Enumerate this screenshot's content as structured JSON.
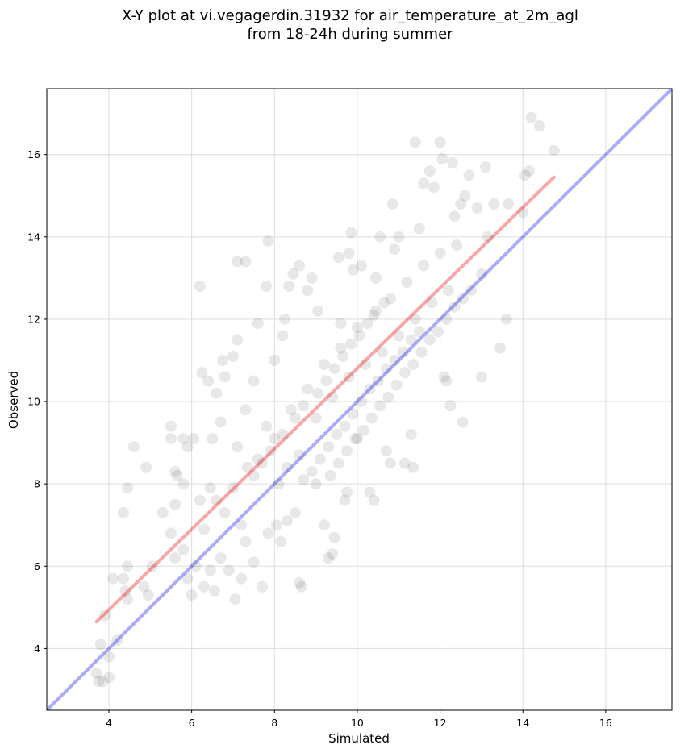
{
  "chart_data": {
    "type": "scatter",
    "title_line1": "X-Y plot at vi.vegagerdin.31932 for air_temperature_at_2m_agl",
    "title_line2": "from 18-24h during summer",
    "xlabel": "Simulated",
    "ylabel": "Observed",
    "xlim": [
      2.5,
      17.6
    ],
    "ylim": [
      2.5,
      17.6
    ],
    "xticks": [
      "4",
      "6",
      "8",
      "10",
      "12",
      "14",
      "16"
    ],
    "yticks": [
      "4",
      "6",
      "8",
      "10",
      "12",
      "14",
      "16"
    ],
    "grid": true,
    "point_color": "#000000",
    "point_alpha": 0.09,
    "identity_line": {
      "from": [
        2.5,
        2.5
      ],
      "to": [
        17.6,
        17.6
      ],
      "color": "#0000ee",
      "alpha": 0.33
    },
    "fit_line": {
      "from": [
        3.7,
        4.65
      ],
      "to": [
        14.75,
        15.45
      ],
      "color": "#ee0000",
      "alpha": 0.35
    },
    "points": [
      [
        3.7,
        3.4
      ],
      [
        3.75,
        3.2
      ],
      [
        3.85,
        3.2
      ],
      [
        3.8,
        4.1
      ],
      [
        3.9,
        4.8
      ],
      [
        4.0,
        3.3
      ],
      [
        4.0,
        3.8
      ],
      [
        4.2,
        4.2
      ],
      [
        4.35,
        7.3
      ],
      [
        4.45,
        7.9
      ],
      [
        4.1,
        5.7
      ],
      [
        4.35,
        5.7
      ],
      [
        4.45,
        6.0
      ],
      [
        4.4,
        5.4
      ],
      [
        4.45,
        5.2
      ],
      [
        4.6,
        8.9
      ],
      [
        4.85,
        5.5
      ],
      [
        4.9,
        8.4
      ],
      [
        4.95,
        5.3
      ],
      [
        5.05,
        6.0
      ],
      [
        5.5,
        9.4
      ],
      [
        5.5,
        9.1
      ],
      [
        5.6,
        8.3
      ],
      [
        5.65,
        8.2
      ],
      [
        5.8,
        9.1
      ],
      [
        5.9,
        8.9
      ],
      [
        6.05,
        9.1
      ],
      [
        6.2,
        12.8
      ],
      [
        6.25,
        10.7
      ],
      [
        6.4,
        10.5
      ],
      [
        6.45,
        7.9
      ],
      [
        6.5,
        9.1
      ],
      [
        6.6,
        10.2
      ],
      [
        6.7,
        9.5
      ],
      [
        6.75,
        11.0
      ],
      [
        6.8,
        10.6
      ],
      [
        7.0,
        11.1
      ],
      [
        7.1,
        11.5
      ],
      [
        7.1,
        13.4
      ],
      [
        7.3,
        13.4
      ],
      [
        7.3,
        9.8
      ],
      [
        7.35,
        8.4
      ],
      [
        7.5,
        10.5
      ],
      [
        7.6,
        11.9
      ],
      [
        7.8,
        12.8
      ],
      [
        7.85,
        13.9
      ],
      [
        8.0,
        11.0
      ],
      [
        8.15,
        6.6
      ],
      [
        8.2,
        11.6
      ],
      [
        8.25,
        12.0
      ],
      [
        8.35,
        12.8
      ],
      [
        8.45,
        13.1
      ],
      [
        8.6,
        13.3
      ],
      [
        8.6,
        5.6
      ],
      [
        8.65,
        5.5
      ],
      [
        8.8,
        12.7
      ],
      [
        8.9,
        13.0
      ],
      [
        9.05,
        12.2
      ],
      [
        9.2,
        7.0
      ],
      [
        9.3,
        6.2
      ],
      [
        9.4,
        6.3
      ],
      [
        9.45,
        6.7
      ],
      [
        9.55,
        13.5
      ],
      [
        9.6,
        11.9
      ],
      [
        9.7,
        7.6
      ],
      [
        9.75,
        7.8
      ],
      [
        9.8,
        13.6
      ],
      [
        9.85,
        14.1
      ],
      [
        9.9,
        13.2
      ],
      [
        10.0,
        9.1
      ],
      [
        10.1,
        13.3
      ],
      [
        10.3,
        7.8
      ],
      [
        10.4,
        7.6
      ],
      [
        10.45,
        13.0
      ],
      [
        10.55,
        14.0
      ],
      [
        10.7,
        8.8
      ],
      [
        10.8,
        8.5
      ],
      [
        10.85,
        14.8
      ],
      [
        10.9,
        13.7
      ],
      [
        11.0,
        14.0
      ],
      [
        11.15,
        8.5
      ],
      [
        11.3,
        9.2
      ],
      [
        11.35,
        8.4
      ],
      [
        11.4,
        16.3
      ],
      [
        11.5,
        14.2
      ],
      [
        11.6,
        15.3
      ],
      [
        11.75,
        15.6
      ],
      [
        11.85,
        15.2
      ],
      [
        12.0,
        16.3
      ],
      [
        12.05,
        15.9
      ],
      [
        12.1,
        10.6
      ],
      [
        12.15,
        10.5
      ],
      [
        12.25,
        9.9
      ],
      [
        12.3,
        15.8
      ],
      [
        12.35,
        14.5
      ],
      [
        12.5,
        14.8
      ],
      [
        12.55,
        9.5
      ],
      [
        12.6,
        15.0
      ],
      [
        12.7,
        15.5
      ],
      [
        12.75,
        12.7
      ],
      [
        12.9,
        14.7
      ],
      [
        13.0,
        13.1
      ],
      [
        13.0,
        10.6
      ],
      [
        13.1,
        15.7
      ],
      [
        13.15,
        14.0
      ],
      [
        13.3,
        14.8
      ],
      [
        13.45,
        11.3
      ],
      [
        13.6,
        12.0
      ],
      [
        13.65,
        14.8
      ],
      [
        14.0,
        14.6
      ],
      [
        14.05,
        15.5
      ],
      [
        14.15,
        15.6
      ],
      [
        14.2,
        16.9
      ],
      [
        14.4,
        16.7
      ],
      [
        14.75,
        16.1
      ],
      [
        5.3,
        7.3
      ],
      [
        5.5,
        6.8
      ],
      [
        5.6,
        6.2
      ],
      [
        5.8,
        6.4
      ],
      [
        5.9,
        5.7
      ],
      [
        6.0,
        5.3
      ],
      [
        6.1,
        6.0
      ],
      [
        6.3,
        5.5
      ],
      [
        6.45,
        5.9
      ],
      [
        6.55,
        5.4
      ],
      [
        6.7,
        6.2
      ],
      [
        6.9,
        5.9
      ],
      [
        7.05,
        5.2
      ],
      [
        7.2,
        5.7
      ],
      [
        7.3,
        6.6
      ],
      [
        7.5,
        6.1
      ],
      [
        7.7,
        5.5
      ],
      [
        7.85,
        6.8
      ],
      [
        8.05,
        7.0
      ],
      [
        8.3,
        7.1
      ],
      [
        8.5,
        7.3
      ],
      [
        6.6,
        7.6
      ],
      [
        6.8,
        7.3
      ],
      [
        7.0,
        7.9
      ],
      [
        7.2,
        7.0
      ],
      [
        5.6,
        7.5
      ],
      [
        5.8,
        8.0
      ],
      [
        6.2,
        7.6
      ],
      [
        6.3,
        6.9
      ],
      [
        7.1,
        8.9
      ],
      [
        7.6,
        8.6
      ],
      [
        7.8,
        9.4
      ],
      [
        8.1,
        8.0
      ],
      [
        8.4,
        9.8
      ],
      [
        8.6,
        8.7
      ],
      [
        8.8,
        10.3
      ],
      [
        9.0,
        9.6
      ],
      [
        9.2,
        10.9
      ],
      [
        9.4,
        10.1
      ],
      [
        9.6,
        11.3
      ],
      [
        9.8,
        10.6
      ],
      [
        10.0,
        11.8
      ],
      [
        10.2,
        10.9
      ],
      [
        10.4,
        12.1
      ],
      [
        10.6,
        11.2
      ],
      [
        10.8,
        12.5
      ],
      [
        11.0,
        11.6
      ],
      [
        11.2,
        12.9
      ],
      [
        11.4,
        12.0
      ],
      [
        11.6,
        13.3
      ],
      [
        11.8,
        12.4
      ],
      [
        12.0,
        13.6
      ],
      [
        12.2,
        12.7
      ],
      [
        12.4,
        13.8
      ],
      [
        8.9,
        8.3
      ],
      [
        9.1,
        8.6
      ],
      [
        9.3,
        8.9
      ],
      [
        9.5,
        9.2
      ],
      [
        9.7,
        9.4
      ],
      [
        9.9,
        9.7
      ],
      [
        10.1,
        10.0
      ],
      [
        10.3,
        10.3
      ],
      [
        10.5,
        10.5
      ],
      [
        10.7,
        10.8
      ],
      [
        10.9,
        11.0
      ],
      [
        11.1,
        11.2
      ],
      [
        11.3,
        11.5
      ],
      [
        11.5,
        11.7
      ],
      [
        8.2,
        9.2
      ],
      [
        8.5,
        9.6
      ],
      [
        8.7,
        9.9
      ],
      [
        9.05,
        10.2
      ],
      [
        9.25,
        10.5
      ],
      [
        9.45,
        10.8
      ],
      [
        9.65,
        11.1
      ],
      [
        9.85,
        11.4
      ],
      [
        10.05,
        11.6
      ],
      [
        10.25,
        11.9
      ],
      [
        10.45,
        12.2
      ],
      [
        10.65,
        12.4
      ],
      [
        7.5,
        8.2
      ],
      [
        7.7,
        8.5
      ],
      [
        7.9,
        8.8
      ],
      [
        8.0,
        9.1
      ],
      [
        8.3,
        8.4
      ],
      [
        8.7,
        8.1
      ],
      [
        9.0,
        8.0
      ],
      [
        9.35,
        8.2
      ],
      [
        9.55,
        8.5
      ],
      [
        9.75,
        8.8
      ],
      [
        9.95,
        9.1
      ],
      [
        10.15,
        9.3
      ],
      [
        10.35,
        9.6
      ],
      [
        10.55,
        9.9
      ],
      [
        10.75,
        10.1
      ],
      [
        10.95,
        10.4
      ],
      [
        11.15,
        10.7
      ],
      [
        11.35,
        10.9
      ],
      [
        11.55,
        11.2
      ],
      [
        11.75,
        11.5
      ],
      [
        11.95,
        11.7
      ],
      [
        12.15,
        12.0
      ],
      [
        12.35,
        12.3
      ],
      [
        12.55,
        12.5
      ]
    ]
  }
}
